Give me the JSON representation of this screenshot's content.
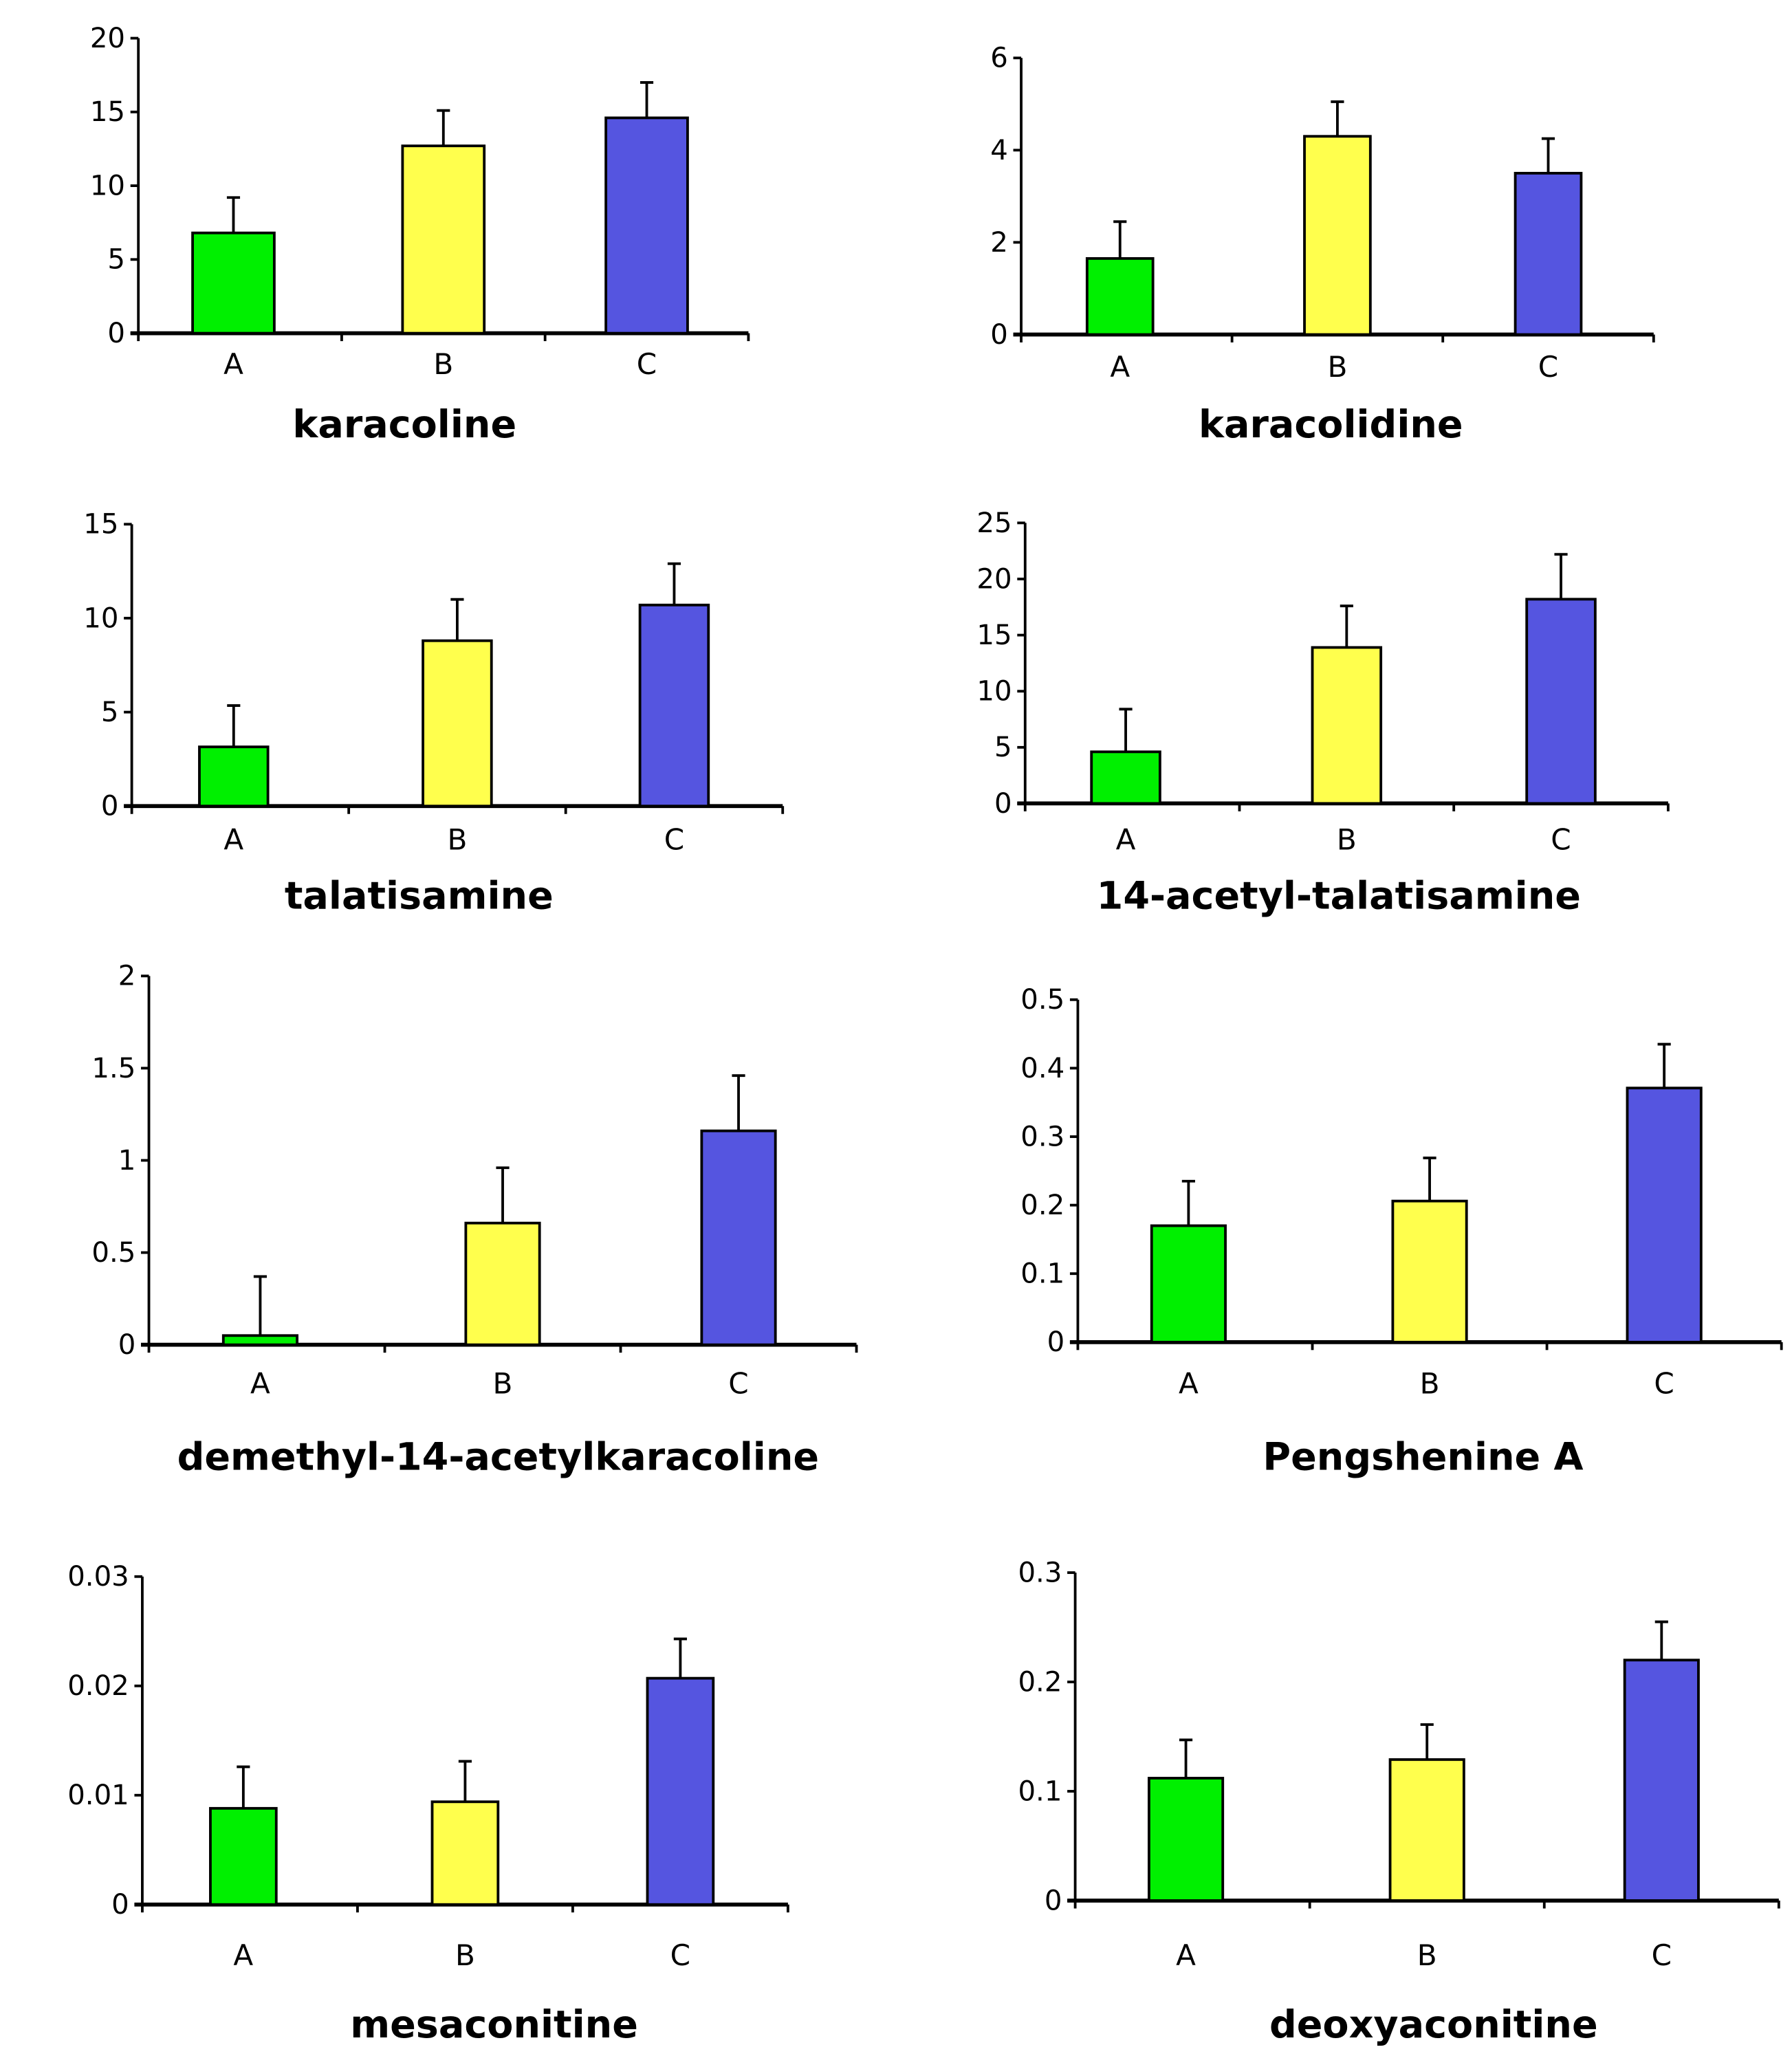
{
  "colors": {
    "A": "#00f000",
    "B": "#ffff4d",
    "C": "#5555e0"
  },
  "chart_data": [
    {
      "type": "bar",
      "title": "karacoline",
      "categories": [
        "A",
        "B",
        "C"
      ],
      "values": [
        6.8,
        12.7,
        14.6
      ],
      "errors": [
        2.4,
        2.4,
        2.4
      ],
      "ylim": [
        0,
        20
      ],
      "yticks": [
        "0",
        "5",
        "10",
        "15",
        "20"
      ]
    },
    {
      "type": "bar",
      "title": "karacolidine",
      "categories": [
        "A",
        "B",
        "C"
      ],
      "values": [
        1.65,
        4.3,
        3.5
      ],
      "errors": [
        0.8,
        0.75,
        0.75
      ],
      "ylim": [
        0,
        6
      ],
      "yticks": [
        "0",
        "2",
        "4",
        "6"
      ]
    },
    {
      "type": "bar",
      "title": "talatisamine",
      "categories": [
        "A",
        "B",
        "C"
      ],
      "values": [
        3.15,
        8.8,
        10.7
      ],
      "errors": [
        2.2,
        2.2,
        2.2
      ],
      "ylim": [
        0,
        15
      ],
      "yticks": [
        "0",
        "5",
        "10",
        "15"
      ]
    },
    {
      "type": "bar",
      "title": "14-acetyl-talatisamine",
      "categories": [
        "A",
        "B",
        "C"
      ],
      "values": [
        4.6,
        13.9,
        18.2
      ],
      "errors": [
        3.8,
        3.7,
        4.0
      ],
      "ylim": [
        0,
        25
      ],
      "yticks": [
        "0",
        "5",
        "10",
        "15",
        "20",
        "25"
      ]
    },
    {
      "type": "bar",
      "title": "demethyl-14-acetylkaracoline",
      "categories": [
        "A",
        "B",
        "C"
      ],
      "values": [
        0.05,
        0.66,
        1.16
      ],
      "errors": [
        0.32,
        0.3,
        0.3
      ],
      "ylim": [
        0,
        2
      ],
      "yticks": [
        "0",
        "0.5",
        "1",
        "1.5",
        "2"
      ]
    },
    {
      "type": "bar",
      "title": "Pengshenine A",
      "categories": [
        "A",
        "B",
        "C"
      ],
      "values": [
        0.17,
        0.206,
        0.371
      ],
      "errors": [
        0.065,
        0.063,
        0.064
      ],
      "ylim": [
        0,
        0.5
      ],
      "yticks": [
        "0",
        "0.1",
        "0.2",
        "0.3",
        "0.4",
        "0.5"
      ]
    },
    {
      "type": "bar",
      "title": "mesaconitine",
      "categories": [
        "A",
        "B",
        "C"
      ],
      "values": [
        0.0088,
        0.0094,
        0.0207
      ],
      "errors": [
        0.0038,
        0.0037,
        0.0036
      ],
      "ylim": [
        0,
        0.03
      ],
      "yticks": [
        "0",
        "0.01",
        "0.02",
        "0.03"
      ]
    },
    {
      "type": "bar",
      "title": "deoxyaconitine",
      "categories": [
        "A",
        "B",
        "C"
      ],
      "values": [
        0.112,
        0.129,
        0.22
      ],
      "errors": [
        0.035,
        0.032,
        0.035
      ],
      "ylim": [
        0,
        0.3
      ],
      "yticks": [
        "0",
        "0.1",
        "0.2",
        "0.3"
      ]
    }
  ]
}
